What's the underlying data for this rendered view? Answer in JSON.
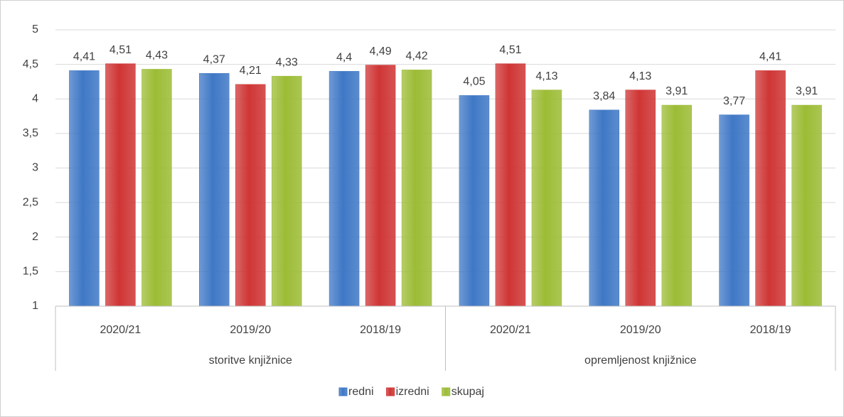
{
  "chart_data": {
    "type": "bar",
    "groups": [
      {
        "name": "storitve knjižnice",
        "categories": [
          "2020/21",
          "2019/20",
          "2018/19"
        ]
      },
      {
        "name": "opremljenost knjižnice",
        "categories": [
          "2020/21",
          "2019/20",
          "2018/19"
        ]
      }
    ],
    "series": [
      {
        "name": "redni",
        "color": "#3f78c6",
        "values": [
          4.41,
          4.37,
          4.4,
          4.05,
          3.84,
          3.77
        ],
        "value_labels": [
          "4,41",
          "4,37",
          "4,4",
          "4,05",
          "3,84",
          "3,77"
        ]
      },
      {
        "name": "izredni",
        "color": "#cf3535",
        "values": [
          4.51,
          4.21,
          4.49,
          4.51,
          4.13,
          4.41
        ],
        "value_labels": [
          "4,51",
          "4,21",
          "4,49",
          "4,51",
          "4,13",
          "4,41"
        ]
      },
      {
        "name": "skupaj",
        "color": "#9cbc35",
        "values": [
          4.43,
          4.33,
          4.42,
          4.13,
          3.91,
          3.91
        ],
        "value_labels": [
          "4,43",
          "4,33",
          "4,42",
          "4,13",
          "3,91",
          "3,91"
        ]
      }
    ],
    "ylim": [
      1,
      5
    ],
    "yticks": [
      1,
      {
        "value": 1.5,
        "label": "1,5"
      },
      2,
      {
        "value": 2.5,
        "label": "2,5"
      },
      3,
      {
        "value": 3.5,
        "label": "3,5"
      },
      4,
      {
        "value": 4.5,
        "label": "4,5"
      },
      5
    ],
    "grid": true,
    "legend": "bottom"
  }
}
